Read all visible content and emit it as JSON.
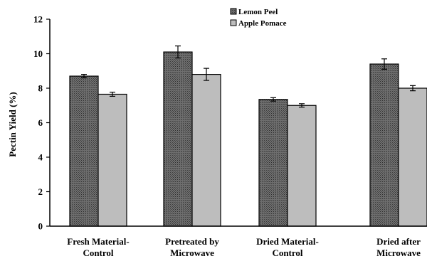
{
  "chart_data": {
    "type": "bar",
    "title": "",
    "xlabel": "",
    "ylabel": "Pectin Yield (%)",
    "ylim": [
      0,
      12
    ],
    "yticks": [
      0,
      2,
      4,
      6,
      8,
      10,
      12
    ],
    "grid": false,
    "legend_position": "top-center",
    "categories": [
      [
        "Fresh Material-",
        "Control"
      ],
      [
        "Pretreated by",
        "Microwave"
      ],
      [
        "Dried Material-",
        "Control"
      ],
      [
        "Dried after",
        "Microwave"
      ]
    ],
    "series": [
      {
        "name": "Lemon Peel",
        "color": "#5a5a5a",
        "pattern": "crosshatch-dark",
        "values": [
          8.7,
          10.1,
          7.35,
          9.4
        ],
        "errors": [
          0.1,
          0.35,
          0.1,
          0.3
        ]
      },
      {
        "name": "Apple Pomace",
        "color": "#bdbdbd",
        "pattern": "light-grey",
        "values": [
          7.65,
          8.8,
          7.0,
          8.0
        ],
        "errors": [
          0.12,
          0.35,
          0.1,
          0.15
        ]
      }
    ]
  }
}
